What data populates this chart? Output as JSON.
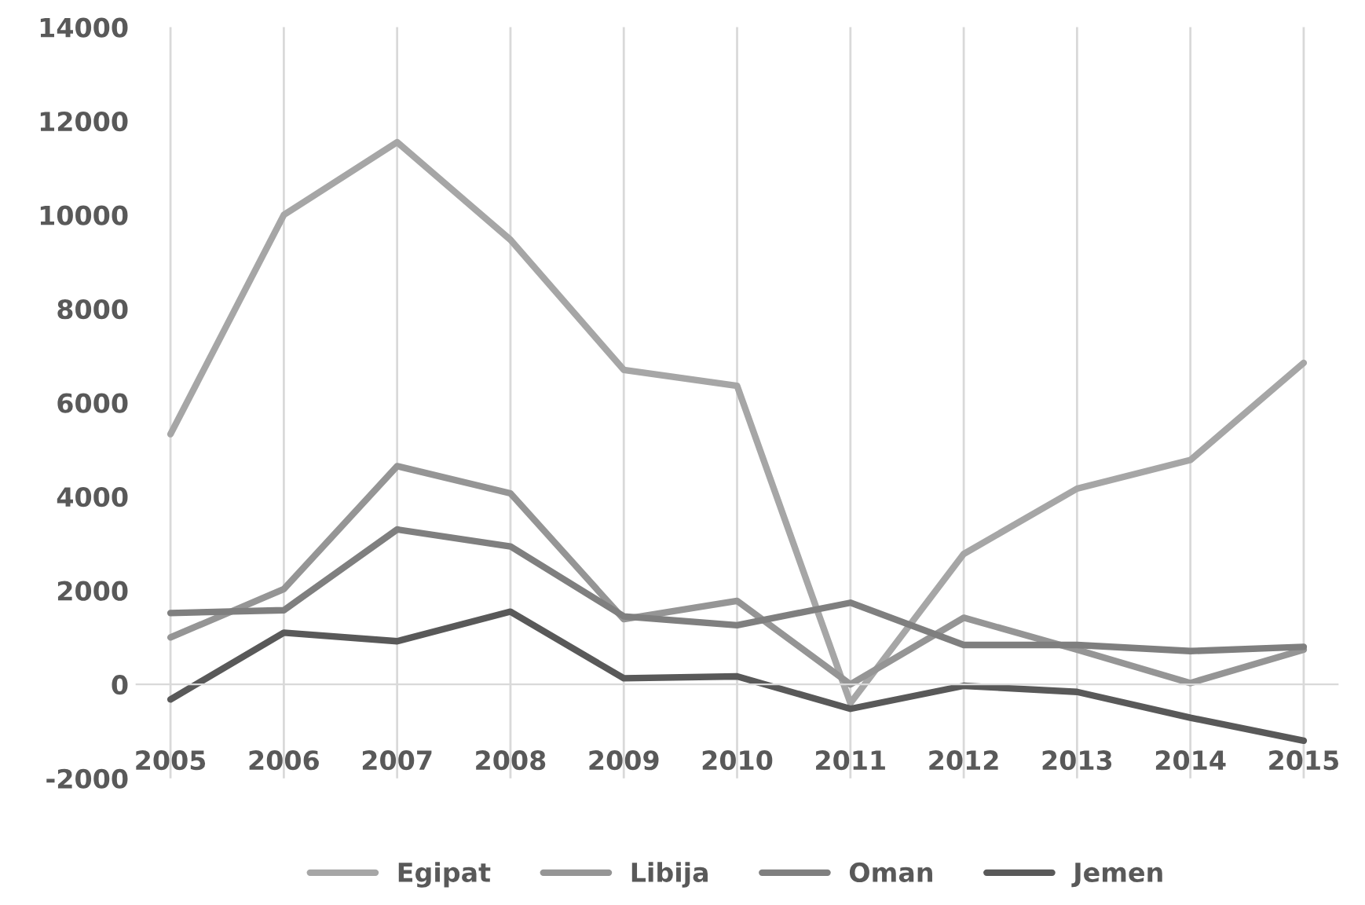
{
  "chart_data": {
    "type": "line",
    "categories": [
      "2005",
      "2006",
      "2007",
      "2008",
      "2009",
      "2010",
      "2011",
      "2012",
      "2013",
      "2014",
      "2015"
    ],
    "series": [
      {
        "name": "Egipat",
        "color": "#a6a6a6",
        "values": [
          5330,
          10000,
          11550,
          9470,
          6700,
          6360,
          -400,
          2780,
          4170,
          4780,
          6850
        ]
      },
      {
        "name": "Libija",
        "color": "#959595",
        "values": [
          1000,
          2030,
          4650,
          4070,
          1390,
          1780,
          0,
          1420,
          740,
          30,
          740
        ]
      },
      {
        "name": "Oman",
        "color": "#7f7f7f",
        "values": [
          1520,
          1580,
          3300,
          2940,
          1450,
          1260,
          1740,
          840,
          840,
          710,
          800
        ]
      },
      {
        "name": "Jemen",
        "color": "#595959",
        "values": [
          -320,
          1100,
          920,
          1550,
          130,
          170,
          -520,
          -30,
          -160,
          -710,
          -1200
        ]
      }
    ],
    "ylim": [
      -2000,
      14000
    ],
    "yticks": [
      -2000,
      0,
      2000,
      4000,
      6000,
      8000,
      10000,
      12000,
      14000
    ],
    "grid": "x",
    "legend": "bottom",
    "marker": "none",
    "line_style": "solid"
  }
}
